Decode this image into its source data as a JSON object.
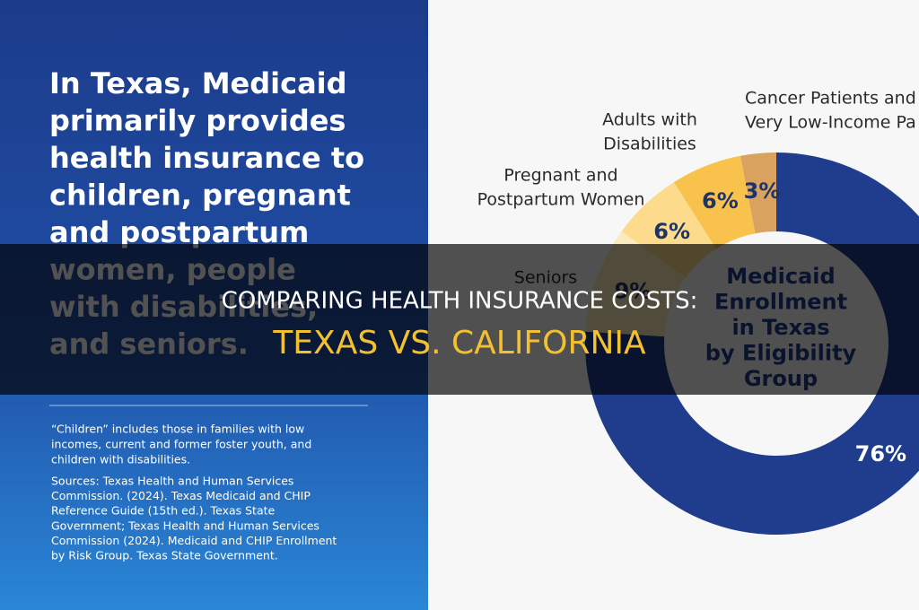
{
  "panel": {
    "heading": [
      "In Texas, Medicaid",
      "primarily provides",
      "health insurance to",
      "children, pregnant",
      "and postpartum",
      "women, people",
      "with disabilities,",
      "and seniors."
    ],
    "note": [
      "“Children” includes those in families with low",
      "incomes, current and former foster youth, and",
      "children with disabilities."
    ],
    "sources": [
      "Sources: Texas Health and Human Services",
      "Commission. (2024). Texas Medicaid and CHIP",
      "Reference Guide (15th ed.). Texas State",
      "Government; Texas Health and Human Services",
      "Commission (2024). Medicaid and CHIP Enrollment",
      "by Risk Group. Texas State Government."
    ]
  },
  "chart_data": {
    "type": "donut",
    "title": [
      "Medicaid",
      "Enrollment",
      "in Texas",
      "by Eligibility",
      "Group"
    ],
    "categories": [
      null,
      [
        "Seniors"
      ],
      [
        "Pregnant and",
        "Postpartum Women"
      ],
      [
        "Adults with",
        "Disabilities"
      ],
      [
        "Cancer Patients and",
        "Very Low-Income Pa"
      ]
    ],
    "values": [
      76,
      9,
      6,
      6,
      3
    ],
    "value_labels": [
      "76%",
      "9%",
      "6%",
      "6%",
      "3%"
    ],
    "colors": [
      "#1f3d8c",
      "#fbeabb",
      "#fcdc8c",
      "#f8c24c",
      "#d9a25e"
    ]
  },
  "banner": {
    "title": "COMPARING HEALTH INSURANCE COSTS:",
    "subtitle": "TEXAS VS. CALIFORNIA"
  }
}
